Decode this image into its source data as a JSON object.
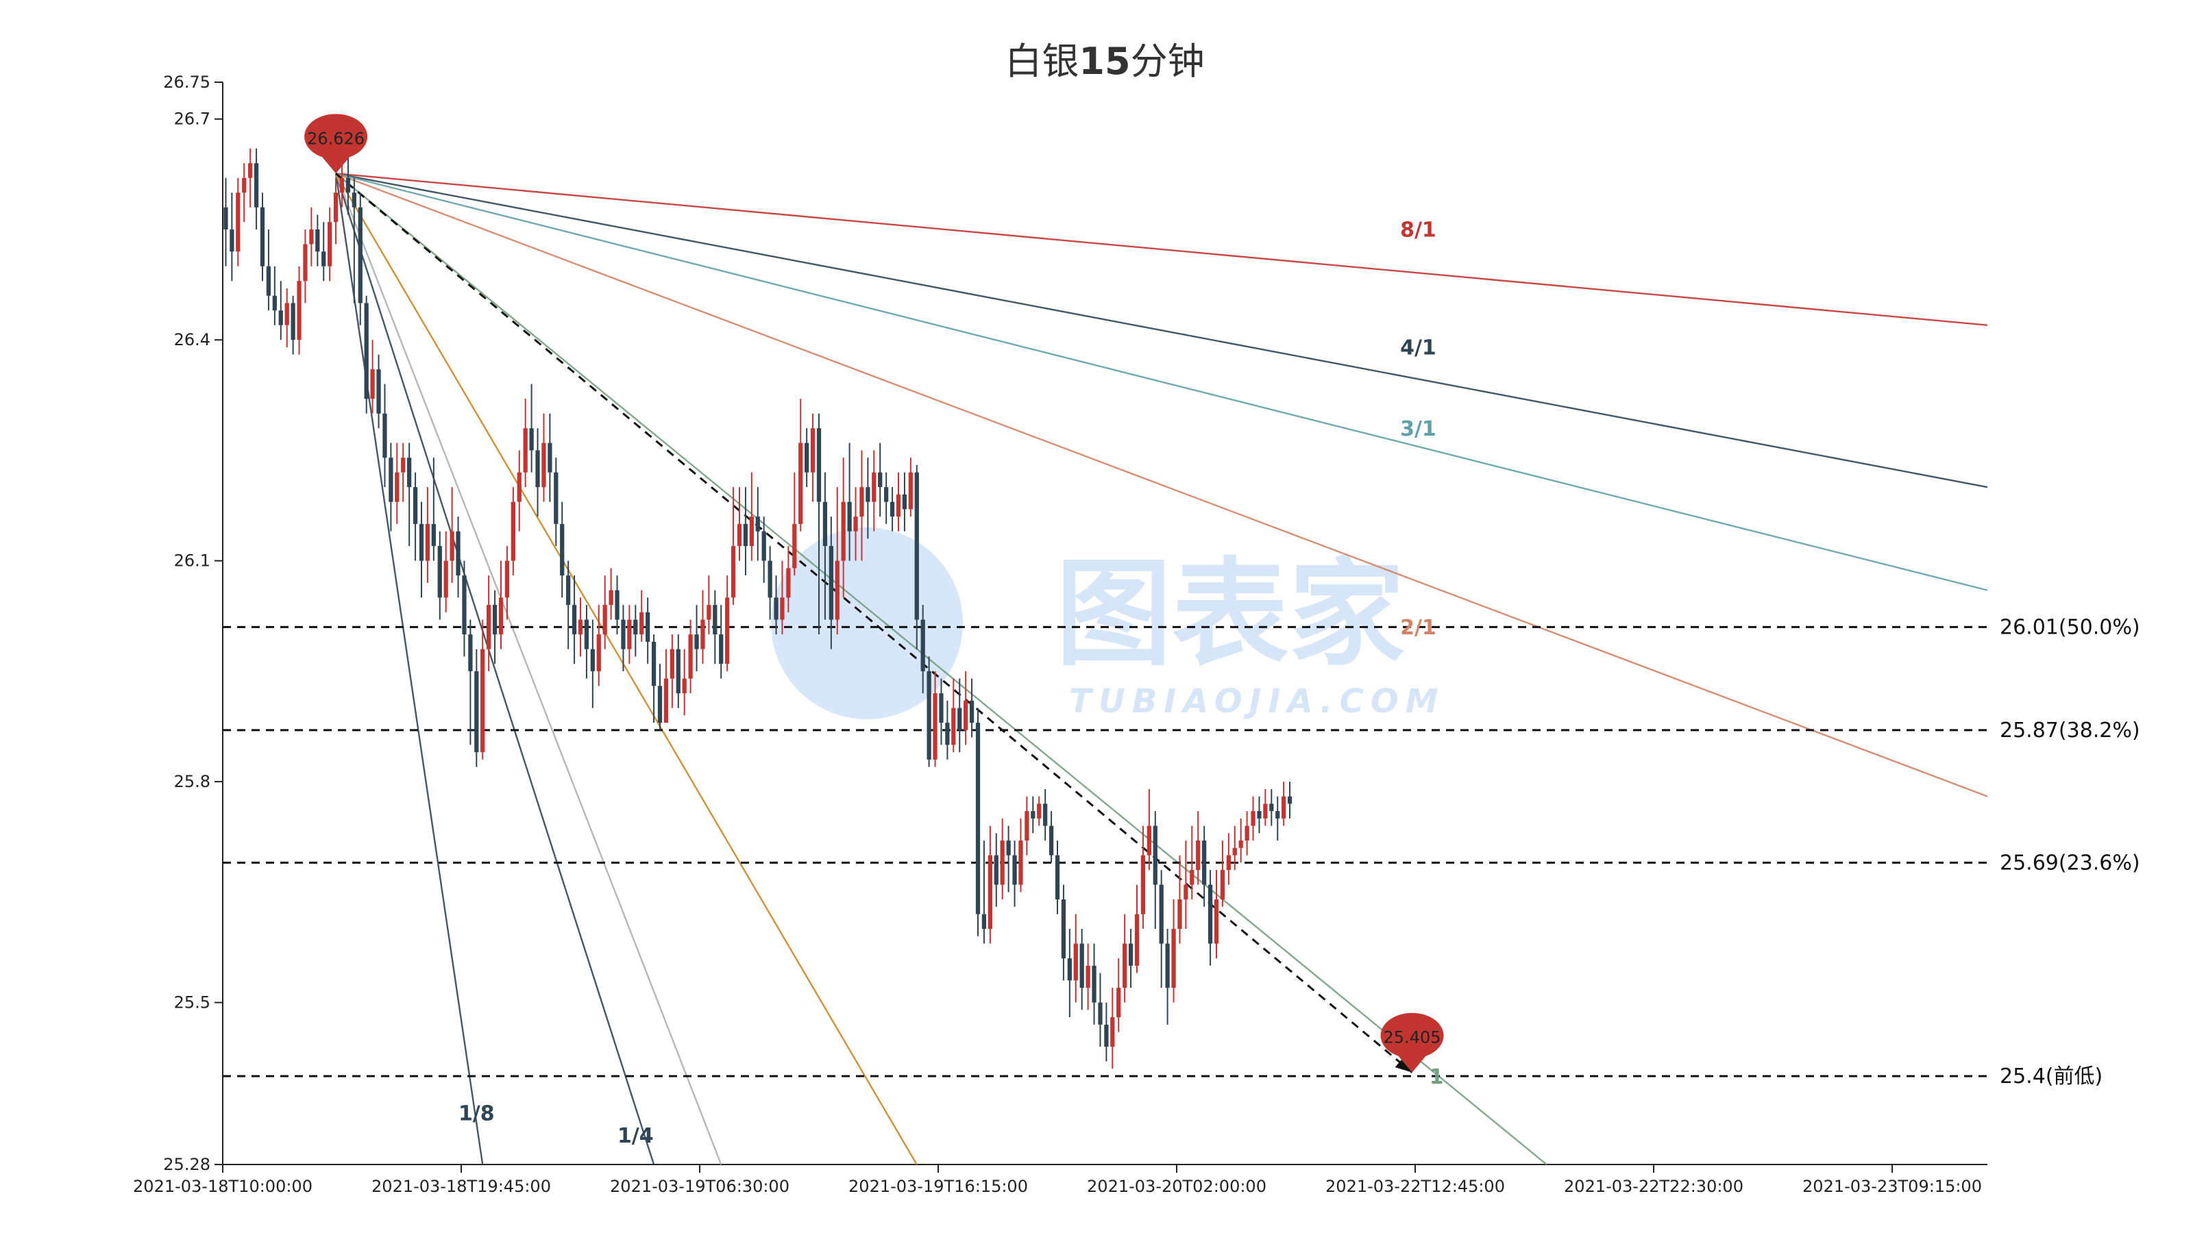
{
  "chart_data": {
    "type": "candlestick",
    "title_prefix": "白银",
    "title_bold": "15",
    "title_suffix": "分钟",
    "y_ticks": [
      "26.75",
      "26.7",
      "26.4",
      "26.1",
      "25.8",
      "25.5",
      "25.28"
    ],
    "ylim": [
      25.28,
      26.75
    ],
    "x_ticks": [
      "2021-03-18T10:00:00",
      "2021-03-18T19:45:00",
      "2021-03-19T06:30:00",
      "2021-03-19T16:15:00",
      "2021-03-20T02:00:00",
      "2021-03-22T12:45:00",
      "2021-03-22T22:30:00",
      "2021-03-23T09:15:00"
    ],
    "bars_per_x_tick": 39,
    "up_color": "#c23531",
    "down_color": "#2f4554",
    "candles": [
      [
        26.58,
        26.55,
        26.62,
        26.5
      ],
      [
        26.55,
        26.52,
        26.6,
        26.48
      ],
      [
        26.52,
        26.6,
        26.62,
        26.5
      ],
      [
        26.6,
        26.62,
        26.64,
        26.56
      ],
      [
        26.62,
        26.64,
        26.66,
        26.58
      ],
      [
        26.64,
        26.58,
        26.66,
        26.55
      ],
      [
        26.58,
        26.5,
        26.6,
        26.48
      ],
      [
        26.5,
        26.46,
        26.55,
        26.44
      ],
      [
        26.46,
        26.44,
        26.5,
        26.42
      ],
      [
        26.44,
        26.42,
        26.48,
        26.4
      ],
      [
        26.42,
        26.45,
        26.47,
        26.39
      ],
      [
        26.45,
        26.4,
        26.46,
        26.38
      ],
      [
        26.4,
        26.48,
        26.5,
        26.38
      ],
      [
        26.48,
        26.53,
        26.55,
        26.45
      ],
      [
        26.53,
        26.55,
        26.58,
        26.5
      ],
      [
        26.55,
        26.52,
        26.57,
        26.5
      ],
      [
        26.52,
        26.5,
        26.56,
        26.48
      ],
      [
        26.5,
        26.56,
        26.58,
        26.48
      ],
      [
        26.56,
        26.6,
        26.62,
        26.53
      ],
      [
        26.6,
        26.62,
        26.64,
        26.58
      ],
      [
        26.62,
        26.6,
        26.65,
        26.57
      ],
      [
        26.6,
        26.58,
        26.62,
        26.45
      ],
      [
        26.58,
        26.45,
        26.6,
        26.42
      ],
      [
        26.45,
        26.32,
        26.46,
        26.3
      ],
      [
        26.32,
        26.36,
        26.4,
        26.3
      ],
      [
        26.36,
        26.3,
        26.38,
        26.28
      ],
      [
        26.3,
        26.24,
        26.34,
        26.2
      ],
      [
        26.24,
        26.18,
        26.26,
        26.14
      ],
      [
        26.18,
        26.22,
        26.26,
        26.15
      ],
      [
        26.22,
        26.24,
        26.26,
        26.18
      ],
      [
        26.24,
        26.2,
        26.26,
        26.12
      ],
      [
        26.2,
        26.15,
        26.22,
        26.1
      ],
      [
        26.15,
        26.1,
        26.18,
        26.05
      ],
      [
        26.1,
        26.15,
        26.2,
        26.07
      ],
      [
        26.15,
        26.12,
        26.24,
        26.1
      ],
      [
        26.12,
        26.05,
        26.14,
        26.02
      ],
      [
        26.05,
        26.1,
        26.14,
        26.03
      ],
      [
        26.1,
        26.14,
        26.2,
        26.07
      ],
      [
        26.14,
        26.08,
        26.16,
        26.05
      ],
      [
        26.08,
        26.0,
        26.1,
        25.97
      ],
      [
        26.0,
        25.95,
        26.02,
        25.85
      ],
      [
        25.95,
        25.84,
        25.98,
        25.82
      ],
      [
        25.84,
        25.98,
        26.02,
        25.83
      ],
      [
        25.98,
        26.04,
        26.08,
        25.95
      ],
      [
        26.04,
        26.0,
        26.06,
        25.96
      ],
      [
        26.0,
        26.05,
        26.1,
        25.98
      ],
      [
        26.05,
        26.1,
        26.12,
        26.02
      ],
      [
        26.1,
        26.18,
        26.2,
        26.08
      ],
      [
        26.18,
        26.22,
        26.25,
        26.14
      ],
      [
        26.22,
        26.28,
        26.32,
        26.2
      ],
      [
        26.28,
        26.25,
        26.34,
        26.22
      ],
      [
        26.25,
        26.2,
        26.28,
        26.16
      ],
      [
        26.2,
        26.26,
        26.3,
        26.18
      ],
      [
        26.26,
        26.22,
        26.3,
        26.18
      ],
      [
        26.22,
        26.15,
        26.24,
        26.12
      ],
      [
        26.15,
        26.08,
        26.18,
        26.05
      ],
      [
        26.08,
        26.04,
        26.1,
        25.98
      ],
      [
        26.04,
        26.0,
        26.08,
        25.96
      ],
      [
        26.0,
        26.02,
        26.05,
        25.97
      ],
      [
        26.02,
        25.98,
        26.04,
        25.94
      ],
      [
        25.98,
        25.95,
        26.02,
        25.9
      ],
      [
        25.95,
        26.0,
        26.04,
        25.93
      ],
      [
        26.0,
        26.04,
        26.08,
        25.98
      ],
      [
        26.04,
        26.06,
        26.09,
        26.02
      ],
      [
        26.06,
        26.02,
        26.08,
        26.0
      ],
      [
        26.02,
        25.98,
        26.04,
        25.95
      ],
      [
        25.98,
        26.02,
        26.04,
        25.96
      ],
      [
        26.02,
        26.0,
        26.04,
        25.97
      ],
      [
        26.0,
        26.03,
        26.06,
        25.99
      ],
      [
        26.03,
        25.99,
        26.05,
        25.96
      ],
      [
        25.99,
        25.93,
        26.0,
        25.88
      ],
      [
        25.93,
        25.88,
        25.96,
        25.87
      ],
      [
        25.88,
        25.94,
        25.98,
        25.88
      ],
      [
        25.94,
        25.98,
        26.0,
        25.9
      ],
      [
        25.98,
        25.92,
        26.0,
        25.9
      ],
      [
        25.92,
        25.94,
        25.98,
        25.89
      ],
      [
        25.94,
        26.0,
        26.02,
        25.92
      ],
      [
        26.0,
        25.98,
        26.04,
        25.95
      ],
      [
        25.98,
        26.02,
        26.06,
        25.96
      ],
      [
        26.02,
        26.04,
        26.08,
        26.0
      ],
      [
        26.04,
        26.0,
        26.06,
        25.96
      ],
      [
        26.0,
        25.96,
        26.04,
        25.94
      ],
      [
        25.96,
        26.05,
        26.08,
        25.95
      ],
      [
        26.05,
        26.12,
        26.2,
        26.04
      ],
      [
        26.12,
        26.15,
        26.2,
        26.1
      ],
      [
        26.15,
        26.12,
        26.2,
        26.08
      ],
      [
        26.12,
        26.16,
        26.22,
        26.1
      ],
      [
        26.16,
        26.14,
        26.2,
        26.1
      ],
      [
        26.14,
        26.1,
        26.16,
        26.07
      ],
      [
        26.1,
        26.05,
        26.12,
        26.02
      ],
      [
        26.05,
        26.02,
        26.08,
        26.0
      ],
      [
        26.02,
        26.05,
        26.1,
        26.0
      ],
      [
        26.05,
        26.09,
        26.12,
        26.03
      ],
      [
        26.09,
        26.15,
        26.22,
        26.08
      ],
      [
        26.15,
        26.26,
        26.32,
        26.14
      ],
      [
        26.26,
        26.22,
        26.28,
        26.2
      ],
      [
        26.22,
        26.28,
        26.3,
        26.18
      ],
      [
        26.28,
        26.18,
        26.3,
        26.0
      ],
      [
        26.18,
        26.12,
        26.22,
        26.02
      ],
      [
        26.12,
        26.02,
        26.16,
        25.98
      ],
      [
        26.02,
        26.1,
        26.2,
        26.0
      ],
      [
        26.1,
        26.18,
        26.24,
        26.05
      ],
      [
        26.18,
        26.14,
        26.26,
        26.1
      ],
      [
        26.14,
        26.16,
        26.2,
        26.1
      ],
      [
        26.16,
        26.2,
        26.25,
        26.1
      ],
      [
        26.2,
        26.18,
        26.24,
        26.13
      ],
      [
        26.18,
        26.22,
        26.25,
        26.14
      ],
      [
        26.22,
        26.2,
        26.26,
        26.16
      ],
      [
        26.2,
        26.18,
        26.22,
        26.15
      ],
      [
        26.18,
        26.16,
        26.2,
        26.14
      ],
      [
        26.16,
        26.19,
        26.22,
        26.14
      ],
      [
        26.19,
        26.17,
        26.22,
        26.14
      ],
      [
        26.17,
        26.22,
        26.24,
        26.16
      ],
      [
        26.22,
        26.02,
        26.23,
        25.98
      ],
      [
        26.02,
        25.95,
        26.04,
        25.92
      ],
      [
        25.95,
        25.83,
        25.97,
        25.82
      ],
      [
        25.83,
        25.92,
        25.95,
        25.82
      ],
      [
        25.92,
        25.88,
        25.94,
        25.85
      ],
      [
        25.88,
        25.85,
        25.91,
        25.83
      ],
      [
        25.85,
        25.9,
        25.94,
        25.84
      ],
      [
        25.9,
        25.87,
        25.94,
        25.84
      ],
      [
        25.87,
        25.91,
        25.95,
        25.85
      ],
      [
        25.91,
        25.88,
        25.94,
        25.86
      ],
      [
        25.88,
        25.62,
        25.9,
        25.59
      ],
      [
        25.62,
        25.6,
        25.72,
        25.58
      ],
      [
        25.6,
        25.7,
        25.74,
        25.58
      ],
      [
        25.7,
        25.66,
        25.73,
        25.63
      ],
      [
        25.66,
        25.72,
        25.75,
        25.64
      ],
      [
        25.72,
        25.7,
        25.74,
        25.65
      ],
      [
        25.7,
        25.66,
        25.72,
        25.63
      ],
      [
        25.66,
        25.72,
        25.75,
        25.65
      ],
      [
        25.72,
        25.76,
        25.78,
        25.7
      ],
      [
        25.76,
        25.75,
        25.78,
        25.73
      ],
      [
        25.75,
        25.77,
        25.78,
        25.74
      ],
      [
        25.77,
        25.74,
        25.79,
        25.72
      ],
      [
        25.74,
        25.7,
        25.76,
        25.69
      ],
      [
        25.7,
        25.64,
        25.72,
        25.62
      ],
      [
        25.64,
        25.56,
        25.66,
        25.53
      ],
      [
        25.56,
        25.53,
        25.6,
        25.48
      ],
      [
        25.53,
        25.58,
        25.62,
        25.5
      ],
      [
        25.58,
        25.52,
        25.6,
        25.49
      ],
      [
        25.52,
        25.55,
        25.58,
        25.49
      ],
      [
        25.55,
        25.5,
        25.58,
        25.47
      ],
      [
        25.5,
        25.47,
        25.54,
        25.44
      ],
      [
        25.47,
        25.44,
        25.5,
        25.42
      ],
      [
        25.44,
        25.48,
        25.52,
        25.41
      ],
      [
        25.48,
        25.52,
        25.56,
        25.46
      ],
      [
        25.52,
        25.58,
        25.62,
        25.5
      ],
      [
        25.58,
        25.55,
        25.6,
        25.52
      ],
      [
        25.55,
        25.62,
        25.66,
        25.54
      ],
      [
        25.62,
        25.7,
        25.74,
        25.6
      ],
      [
        25.7,
        25.74,
        25.79,
        25.68
      ],
      [
        25.74,
        25.66,
        25.76,
        25.6
      ],
      [
        25.66,
        25.58,
        25.68,
        25.52
      ],
      [
        25.58,
        25.52,
        25.6,
        25.47
      ],
      [
        25.52,
        25.6,
        25.64,
        25.5
      ],
      [
        25.6,
        25.64,
        25.7,
        25.58
      ],
      [
        25.64,
        25.66,
        25.72,
        25.6
      ],
      [
        25.66,
        25.68,
        25.74,
        25.64
      ],
      [
        25.68,
        25.72,
        25.76,
        25.66
      ],
      [
        25.72,
        25.66,
        25.74,
        25.63
      ],
      [
        25.66,
        25.58,
        25.68,
        25.55
      ],
      [
        25.58,
        25.64,
        25.68,
        25.56
      ],
      [
        25.64,
        25.68,
        25.72,
        25.63
      ],
      [
        25.68,
        25.7,
        25.73,
        25.66
      ],
      [
        25.7,
        25.71,
        25.74,
        25.68
      ],
      [
        25.71,
        25.72,
        25.75,
        25.69
      ],
      [
        25.72,
        25.74,
        25.76,
        25.7
      ],
      [
        25.74,
        25.76,
        25.78,
        25.72
      ],
      [
        25.76,
        25.75,
        25.78,
        25.73
      ],
      [
        25.75,
        25.77,
        25.79,
        25.74
      ],
      [
        25.77,
        25.76,
        25.79,
        25.74
      ],
      [
        25.76,
        25.75,
        25.78,
        25.72
      ],
      [
        25.75,
        25.78,
        25.8,
        25.74
      ],
      [
        25.78,
        25.77,
        25.8,
        25.75
      ]
    ],
    "levels": [
      {
        "value": 26.01,
        "label": "26.01(50.0%)"
      },
      {
        "value": 25.87,
        "label": "25.87(38.2%)"
      },
      {
        "value": 25.69,
        "label": "25.69(23.6%)"
      },
      {
        "value": 25.4,
        "label": "25.4(前低)"
      }
    ],
    "markers": [
      {
        "label": "26.626",
        "value": 26.626,
        "bar": 18
      },
      {
        "label": "25.405",
        "value": 25.405,
        "bar": 194
      }
    ],
    "gann_fan": [
      {
        "label": "8/1",
        "color": "#c23531",
        "end_value": 26.42,
        "label_bar": 195,
        "label_value": 26.54
      },
      {
        "label": "4/1",
        "color": "#2f4554",
        "end_value": 26.2,
        "label_bar": 195,
        "label_value": 26.38
      },
      {
        "label": "3/1",
        "color": "#61a0a8",
        "end_value": 26.06,
        "label_bar": 195,
        "label_value": 26.27
      },
      {
        "label": "2/1",
        "color": "#d48265",
        "end_value": 25.78,
        "label_bar": 195,
        "label_value": 26.0
      },
      {
        "label": "1",
        "color": "#749f83",
        "end_bar": 216,
        "end_value": 25.28,
        "label_bar": 198,
        "label_value": 25.39
      },
      {
        "label": "1/4",
        "color": "#2f4554",
        "end_bar": 70,
        "end_value": 25.28,
        "label_bar": 67,
        "label_value": 25.31
      },
      {
        "label": "1/8",
        "color": "#2f4554",
        "end_bar": 42,
        "end_value": 25.28,
        "label_bar": 41,
        "label_value": 25.34
      }
    ],
    "extra_fan_lines": [
      {
        "color": "#b0b0b0",
        "end_bar": 81,
        "end_value": 25.28
      },
      {
        "color": "#ca8622",
        "end_bar": 113,
        "end_value": 25.28
      }
    ],
    "dashed_trend": {
      "from_bar": 18,
      "from_value": 26.626,
      "to_bar": 194,
      "to_value": 25.405
    },
    "watermark": {
      "main": "图表家",
      "sub": "TUBIAOJIA.COM"
    }
  }
}
